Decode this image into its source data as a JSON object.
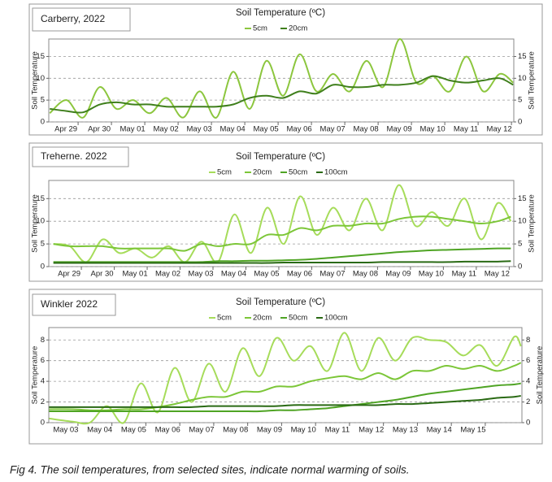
{
  "chart_data": [
    {
      "type": "line",
      "label": "Carberry, 2022",
      "title": "Soil Temperature (ºC)",
      "ylabel": "Soil Temperature",
      "x": [
        -0.85,
        -0.35,
        0.15,
        0.65,
        1.15,
        1.65,
        2.15,
        2.65,
        3.15,
        3.65,
        4.15,
        4.65,
        5.15,
        5.65,
        6.15,
        6.65,
        7.15,
        7.65,
        8.15,
        8.65,
        9.15,
        9.65,
        10.15,
        10.65,
        11.15,
        11.65,
        12.15,
        12.65,
        13.05
      ],
      "xlim": [
        -0.88,
        13.07
      ],
      "xticks": [
        {
          "value": 0,
          "label": "Apr 29"
        },
        {
          "value": 1,
          "label": "Apr 30"
        },
        {
          "value": 2,
          "label": "May 01"
        },
        {
          "value": 3,
          "label": "May 02"
        },
        {
          "value": 4,
          "label": "May 03"
        },
        {
          "value": 5,
          "label": "May 04"
        },
        {
          "value": 6,
          "label": "May 05"
        },
        {
          "value": 7,
          "label": "May 06"
        },
        {
          "value": 8,
          "label": "May 07"
        },
        {
          "value": 9,
          "label": "May 08"
        },
        {
          "value": 10,
          "label": "May 09"
        },
        {
          "value": 11,
          "label": "May 10"
        },
        {
          "value": 12,
          "label": "May 11"
        },
        {
          "value": 13,
          "label": "May 12"
        }
      ],
      "ylim": [
        0,
        19
      ],
      "yticks": [
        0,
        5,
        10,
        15
      ],
      "grid": true,
      "series": [
        {
          "name": "5cm",
          "color": "#8cc63e",
          "values": [
            2,
            5,
            1,
            8,
            3,
            5,
            2,
            5.5,
            1,
            7,
            1,
            11.5,
            3,
            14,
            6,
            15.5,
            7,
            11,
            7,
            14,
            8,
            19,
            9,
            10.5,
            7,
            15,
            7,
            11,
            9
          ]
        },
        {
          "name": "20cm",
          "color": "#3f7f1c",
          "values": [
            3,
            2.5,
            2.2,
            4,
            4.5,
            4,
            4,
            3.5,
            3.5,
            3.5,
            3.5,
            4,
            5.5,
            6,
            5.5,
            7,
            6.5,
            8.5,
            8,
            8,
            8.5,
            8.5,
            9,
            10.5,
            9.5,
            9,
            9.5,
            10,
            8.5
          ]
        }
      ]
    },
    {
      "type": "line",
      "label": "Treherne. 2022",
      "title": "Soil Temperature (ºC)",
      "ylabel": "Soil Temperature",
      "x": [
        -0.85,
        -0.35,
        0.15,
        0.65,
        1.15,
        1.65,
        2.15,
        2.65,
        3.15,
        3.65,
        4.15,
        4.65,
        5.15,
        5.65,
        6.15,
        6.65,
        7.15,
        7.65,
        8.15,
        8.65,
        9.15,
        9.65,
        10.15,
        10.65,
        11.15,
        11.65,
        12.15,
        12.65,
        13.05
      ],
      "xlim": [
        -0.99,
        13.14
      ],
      "xticks": [
        {
          "value": 0,
          "label": "Apr 29"
        },
        {
          "value": 1,
          "label": "Apr 30"
        },
        {
          "value": 2,
          "label": "May 01"
        },
        {
          "value": 3,
          "label": "May 02"
        },
        {
          "value": 4,
          "label": "May 03"
        },
        {
          "value": 5,
          "label": "May 04"
        },
        {
          "value": 6,
          "label": "May 05"
        },
        {
          "value": 7,
          "label": "May 06"
        },
        {
          "value": 8,
          "label": "May 07"
        },
        {
          "value": 9,
          "label": "May 08"
        },
        {
          "value": 10,
          "label": "May 09"
        },
        {
          "value": 11,
          "label": "May 10"
        },
        {
          "value": 12,
          "label": "May 11"
        },
        {
          "value": 13,
          "label": "May 12"
        }
      ],
      "ylim": [
        0,
        19
      ],
      "yticks": [
        0,
        5,
        10,
        15
      ],
      "grid": true,
      "series": [
        {
          "name": "5cm",
          "color": "#a6dc5a",
          "values": [
            5,
            4.5,
            1,
            6,
            3,
            4,
            2,
            4.5,
            1,
            5.5,
            1,
            11.5,
            3,
            13,
            5,
            15.5,
            7,
            13,
            8,
            15,
            8,
            18,
            9,
            12,
            9,
            15,
            6,
            14,
            10
          ]
        },
        {
          "name": "20cm",
          "color": "#7cc638",
          "values": [
            5,
            4.5,
            4.5,
            4.5,
            4,
            4,
            4,
            4,
            3.5,
            5,
            4.5,
            5,
            5,
            7,
            7,
            8.5,
            8,
            9,
            9,
            9.5,
            9.5,
            10.5,
            11,
            11,
            10.5,
            10,
            9.5,
            10,
            11
          ]
        },
        {
          "name": "50cm",
          "color": "#4fa424",
          "values": [
            1,
            1,
            1,
            1,
            1,
            1,
            1,
            1,
            1,
            1,
            1.2,
            1.2,
            1.3,
            1.3,
            1.4,
            1.5,
            1.7,
            2,
            2.3,
            2.6,
            2.9,
            3.2,
            3.4,
            3.6,
            3.7,
            3.8,
            3.9,
            4,
            4
          ]
        },
        {
          "name": "100cm",
          "color": "#2a6a14",
          "values": [
            0.8,
            0.8,
            0.8,
            0.8,
            0.8,
            0.8,
            0.8,
            0.8,
            0.8,
            0.8,
            0.8,
            0.8,
            0.8,
            0.8,
            0.9,
            0.9,
            0.9,
            0.9,
            0.9,
            0.9,
            1,
            1,
            1,
            1,
            1,
            1.1,
            1.1,
            1.1,
            1.2
          ]
        }
      ]
    },
    {
      "type": "line",
      "label": "Winkler 2022",
      "title": "Soil Temperature (ºC)",
      "ylabel": "Soil Temperature",
      "x": [
        -0.85,
        -0.15,
        0.35,
        0.85,
        1.35,
        1.85,
        2.35,
        2.85,
        3.35,
        3.85,
        4.35,
        4.85,
        5.35,
        5.85,
        6.35,
        6.85,
        7.35,
        7.85,
        8.35,
        8.85,
        9.35,
        9.85,
        10.35,
        10.85,
        11.35,
        11.85,
        12.35,
        12.85,
        13.05
      ],
      "xlim": [
        -0.86,
        13.08
      ],
      "xticks": [
        {
          "value": 0,
          "label": "May 03"
        },
        {
          "value": 1,
          "label": "May 04"
        },
        {
          "value": 2,
          "label": "May 05"
        },
        {
          "value": 3,
          "label": "May 06"
        },
        {
          "value": 4,
          "label": "May 07"
        },
        {
          "value": 5,
          "label": "May 08"
        },
        {
          "value": 6,
          "label": "May 09"
        },
        {
          "value": 7,
          "label": "May 10"
        },
        {
          "value": 8,
          "label": "May 11"
        },
        {
          "value": 9,
          "label": "May 12"
        },
        {
          "value": 10,
          "label": "May 13"
        },
        {
          "value": 11,
          "label": "May 14"
        },
        {
          "value": 12,
          "label": "May 15"
        }
      ],
      "ylim": [
        0,
        9.2
      ],
      "yticks": [
        0,
        2,
        4,
        6,
        8
      ],
      "grid": true,
      "series": [
        {
          "name": "5cm",
          "color": "#a6dc5a",
          "values": [
            0.4,
            0.1,
            0,
            1.6,
            0,
            3.8,
            1,
            5.3,
            2,
            5.7,
            3,
            7.2,
            4.5,
            8.2,
            6,
            7.4,
            5,
            8.7,
            5,
            8.2,
            6,
            8.2,
            8,
            7.8,
            6.5,
            7.5,
            5.5,
            8.3,
            7.4
          ]
        },
        {
          "name": "20cm",
          "color": "#7cc638",
          "values": [
            1.3,
            1.3,
            1.2,
            1.2,
            1.3,
            1.3,
            1.5,
            1.8,
            2.2,
            2.5,
            2.5,
            3,
            3,
            3.5,
            3.5,
            4,
            4.3,
            4.5,
            4.2,
            4.8,
            4.2,
            5,
            5,
            5.5,
            5.2,
            5.5,
            5,
            5.5,
            5.8
          ]
        },
        {
          "name": "50cm",
          "color": "#4fa424",
          "values": [
            1.1,
            1.1,
            1.1,
            1.1,
            1.1,
            1.1,
            1.1,
            1.1,
            1.1,
            1.1,
            1.1,
            1.1,
            1.1,
            1.2,
            1.2,
            1.3,
            1.4,
            1.6,
            1.8,
            2,
            2.2,
            2.5,
            2.8,
            3,
            3.2,
            3.4,
            3.6,
            3.7,
            3.8
          ]
        },
        {
          "name": "100cm",
          "color": "#2a6a14",
          "values": [
            1.5,
            1.5,
            1.5,
            1.5,
            1.5,
            1.5,
            1.5,
            1.5,
            1.5,
            1.6,
            1.6,
            1.6,
            1.6,
            1.6,
            1.7,
            1.7,
            1.7,
            1.7,
            1.7,
            1.7,
            1.8,
            1.8,
            1.9,
            2,
            2.1,
            2.2,
            2.4,
            2.5,
            2.6
          ]
        }
      ]
    }
  ],
  "caption": "Fig 4.  The soil temperatures, from selected sites, indicate normal warming of soils."
}
